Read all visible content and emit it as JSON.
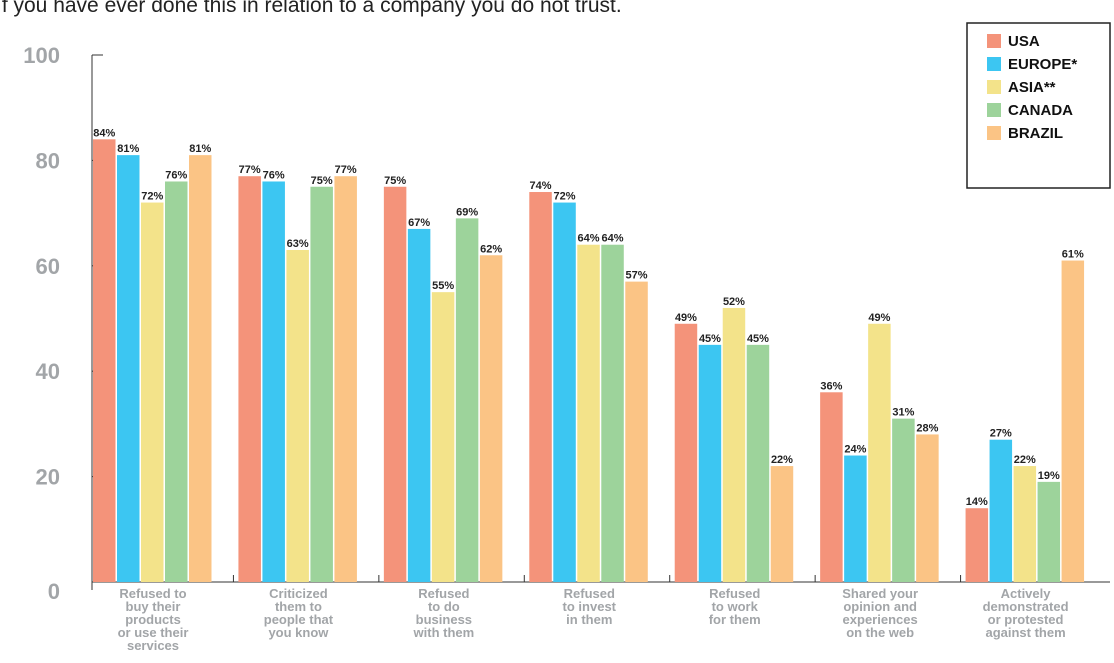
{
  "subtitle": "If you have ever done this in relation to a company you do not trust.",
  "chart_data": {
    "type": "bar",
    "ylim": [
      0,
      100
    ],
    "yticks": [
      0,
      20,
      40,
      60,
      80,
      100
    ],
    "grid": false,
    "legend_position": "top-right",
    "categories": [
      [
        "Refused to",
        "buy their",
        "products",
        "or use their",
        "services"
      ],
      [
        "Criticized",
        "them to",
        "people that",
        "you know"
      ],
      [
        "Refused",
        "to do",
        "business",
        "with them"
      ],
      [
        "Refused",
        "to invest",
        "in them"
      ],
      [
        "Refused",
        "to work",
        "for them"
      ],
      [
        "Shared your",
        "opinion and",
        "experiences",
        "on the web"
      ],
      [
        "Actively",
        "demonstrated",
        "or protested",
        "against them"
      ]
    ],
    "series": [
      {
        "name": "USA",
        "color": "#f4937a",
        "values": [
          84,
          77,
          75,
          74,
          49,
          36,
          14
        ]
      },
      {
        "name": "EUROPE*",
        "color": "#3cc6f2",
        "values": [
          81,
          76,
          67,
          72,
          45,
          24,
          27
        ]
      },
      {
        "name": "ASIA**",
        "color": "#f3e38a",
        "values": [
          72,
          63,
          55,
          64,
          52,
          49,
          22
        ]
      },
      {
        "name": "CANADA",
        "color": "#9dd39b",
        "values": [
          76,
          75,
          69,
          64,
          45,
          31,
          19
        ]
      },
      {
        "name": "BRAZIL",
        "color": "#fbc485",
        "values": [
          81,
          77,
          62,
          57,
          22,
          28,
          61
        ]
      }
    ]
  }
}
